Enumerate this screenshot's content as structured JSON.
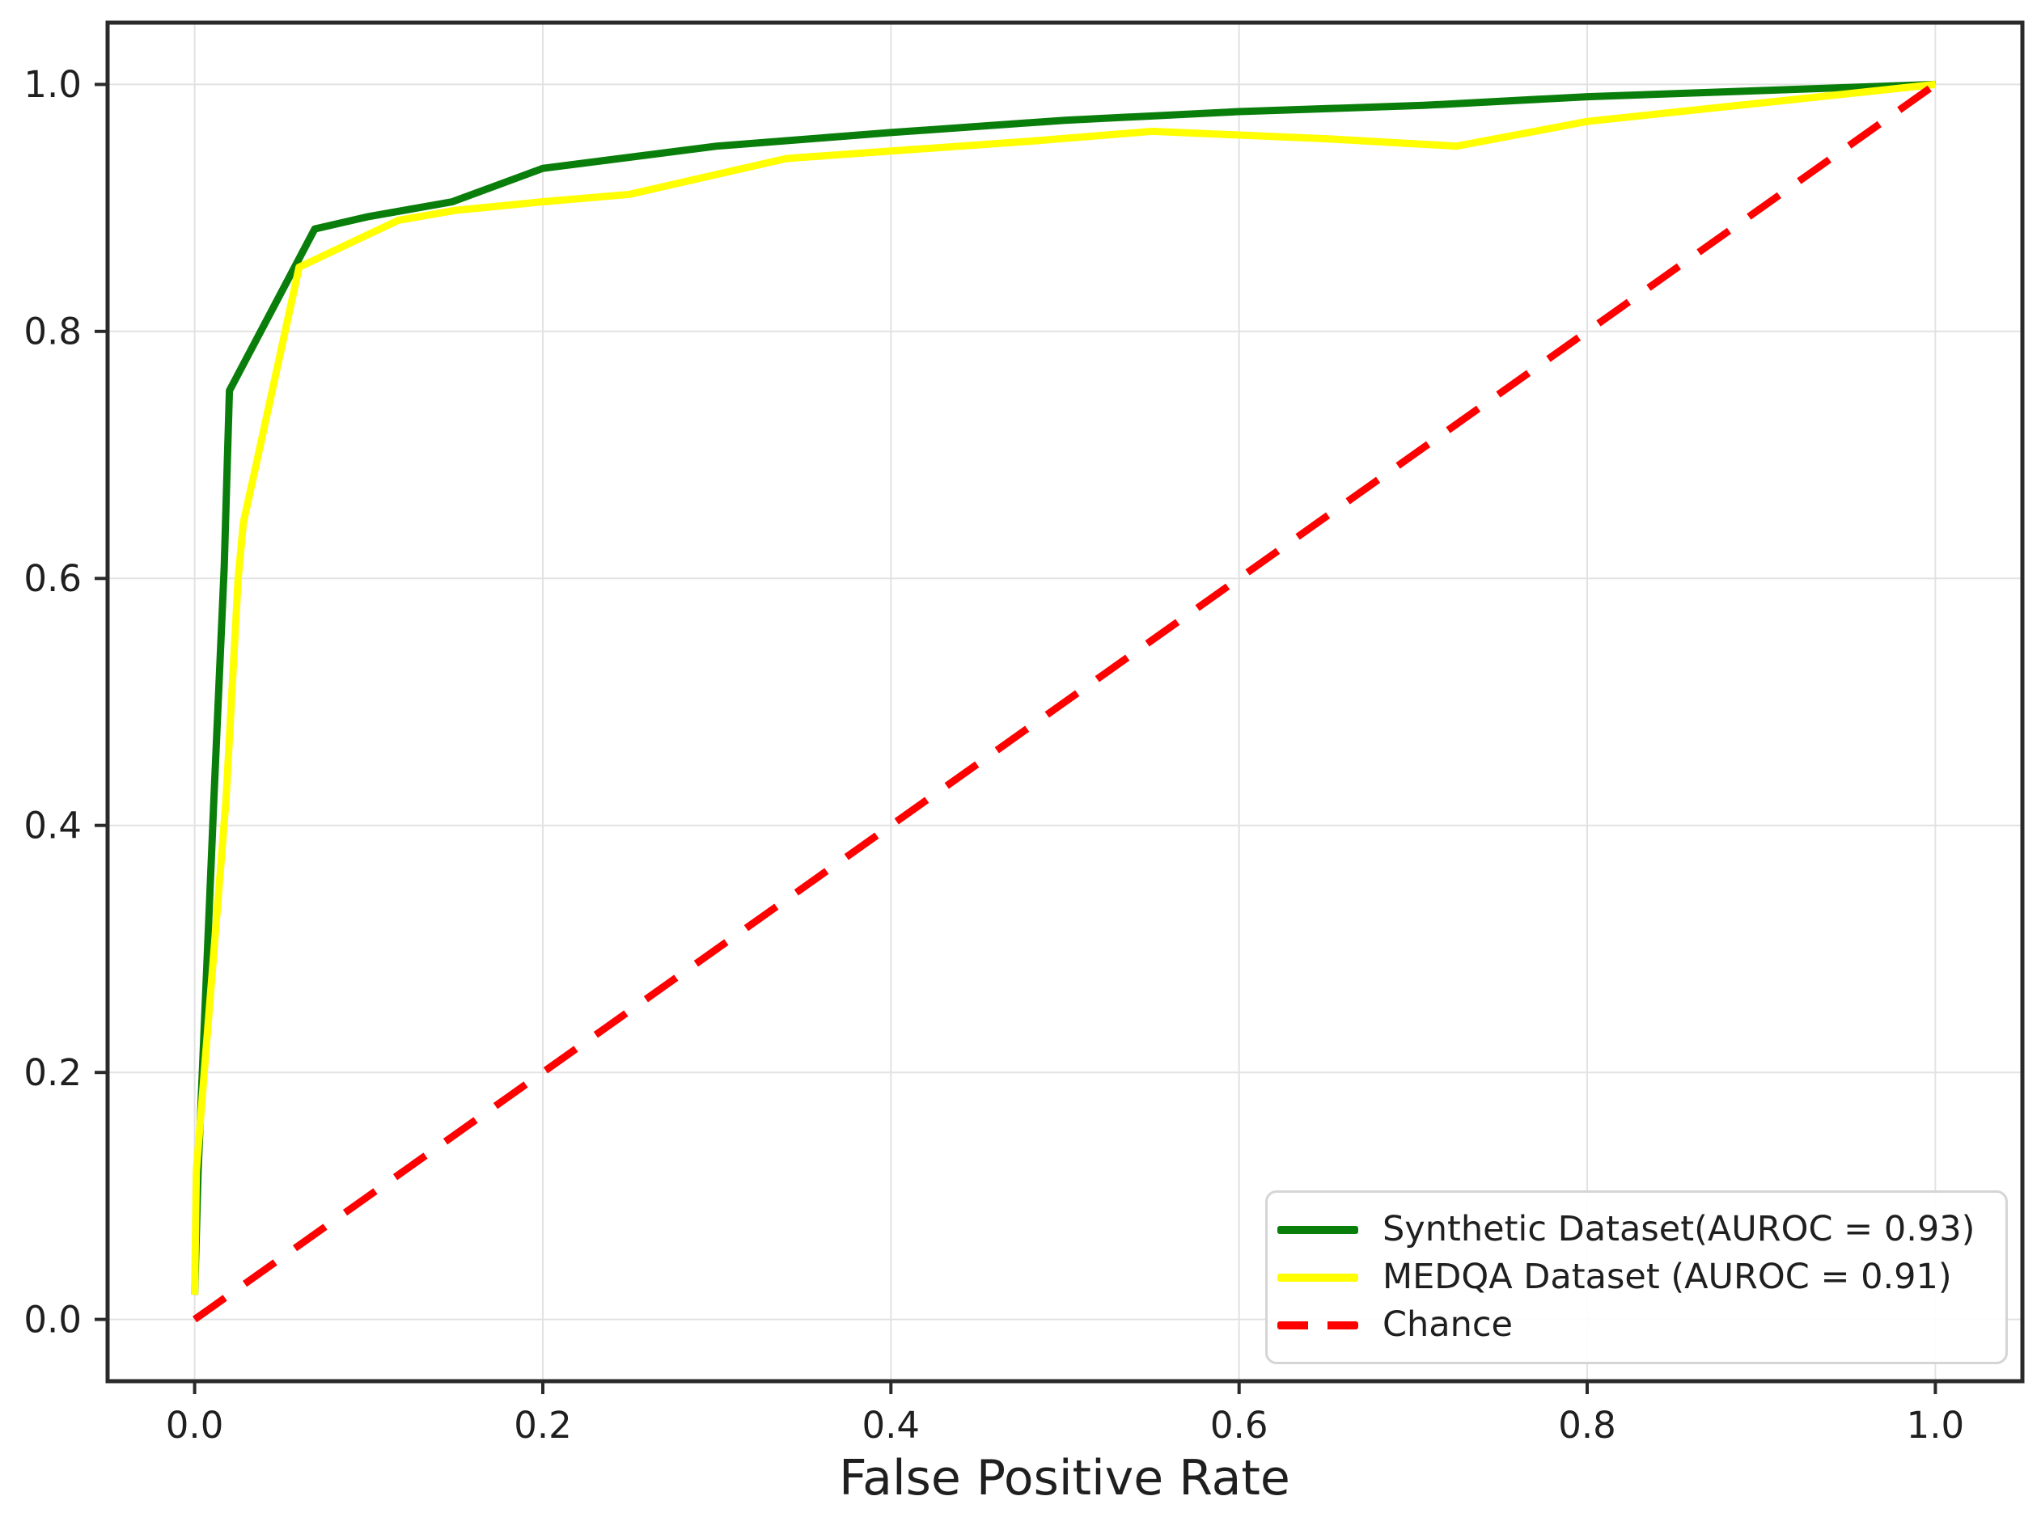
{
  "figure": {
    "background": "#ffffff",
    "text_color": "#1f1f1f",
    "spine_color": "#2a2a2a",
    "grid_color": "#e2e2e2"
  },
  "chart_data": {
    "type": "line",
    "title": "",
    "xlabel": "False Positive Rate",
    "ylabel": "",
    "xlim": [
      -0.05,
      1.05
    ],
    "ylim": [
      -0.05,
      1.05
    ],
    "xticks": [
      0.0,
      0.2,
      0.4,
      0.6,
      0.8,
      1.0
    ],
    "yticks": [
      0.0,
      0.2,
      0.4,
      0.6,
      0.8,
      1.0
    ],
    "grid": true,
    "legend_position": "lower right",
    "series": [
      {
        "name": "Synthetic Dataset(AUROC = 0.93)",
        "auroc": 0.93,
        "color": "#0a7e0a",
        "style": "solid",
        "x": [
          0.0,
          0.002,
          0.011,
          0.017,
          0.02,
          0.069,
          0.1,
          0.148,
          0.2,
          0.3,
          0.4,
          0.5,
          0.6,
          0.706,
          0.8,
          0.9,
          1.0
        ],
        "y": [
          0.02,
          0.12,
          0.42,
          0.61,
          0.752,
          0.883,
          0.893,
          0.905,
          0.932,
          0.95,
          0.961,
          0.971,
          0.978,
          0.983,
          0.99,
          0.995,
          1.0
        ]
      },
      {
        "name": "MEDQA Dataset (AUROC = 0.91)",
        "auroc": 0.91,
        "color": "#ffff00",
        "style": "solid",
        "x": [
          0.0,
          0.001,
          0.018,
          0.025,
          0.028,
          0.035,
          0.06,
          0.117,
          0.15,
          0.2,
          0.25,
          0.34,
          0.4,
          0.48,
          0.55,
          0.65,
          0.725,
          0.8,
          0.9,
          1.0
        ],
        "y": [
          0.02,
          0.12,
          0.42,
          0.6,
          0.645,
          0.69,
          0.852,
          0.89,
          0.898,
          0.905,
          0.911,
          0.94,
          0.946,
          0.954,
          0.962,
          0.956,
          0.95,
          0.97,
          0.985,
          1.0
        ]
      },
      {
        "name": "Chance",
        "color": "#ff0000",
        "style": "dashed",
        "x": [
          0.0,
          1.0
        ],
        "y": [
          0.0,
          1.0
        ]
      }
    ]
  }
}
